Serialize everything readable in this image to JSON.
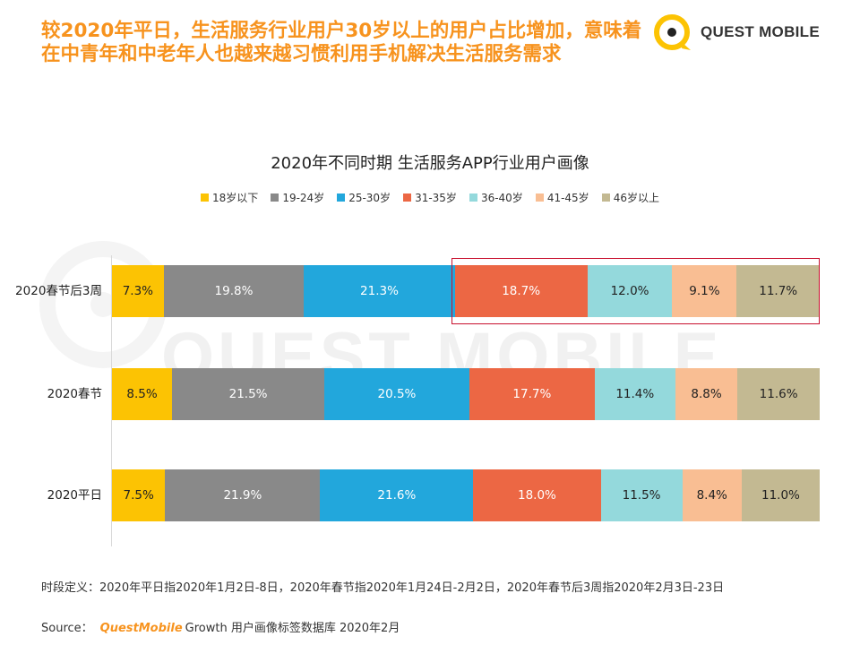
{
  "headline": "较2020年平日，生活服务行业用户30岁以上的用户占比增加，意味着在中青年和中老年人也越来越习惯利用手机解决生活服务需求",
  "brand": {
    "logo_text": "QUEST MOBILE",
    "watermark_text": "QUEST MOBILE"
  },
  "colors": {
    "accent": "#f7931e",
    "highlight_border": "#c8102e",
    "series": [
      "#fcc303",
      "#898989",
      "#22a7dc",
      "#ec6744",
      "#94d9dc",
      "#f9be93",
      "#c3b992"
    ]
  },
  "chart_data": {
    "type": "bar",
    "orientation": "horizontal",
    "stacked": true,
    "normalized": true,
    "title": "2020年不同时期 生活服务APP行业用户画像",
    "categories": [
      "2020春节后3周",
      "2020春节",
      "2020平日"
    ],
    "series": [
      {
        "name": "18岁以下",
        "values": [
          7.3,
          8.5,
          7.5
        ]
      },
      {
        "name": "19-24岁",
        "values": [
          19.8,
          21.5,
          21.9
        ]
      },
      {
        "name": "25-30岁",
        "values": [
          21.3,
          20.5,
          21.6
        ]
      },
      {
        "name": "31-35岁",
        "values": [
          18.7,
          17.7,
          18.0
        ]
      },
      {
        "name": "36-40岁",
        "values": [
          12.0,
          11.4,
          11.5
        ]
      },
      {
        "name": "41-45岁",
        "values": [
          9.1,
          8.8,
          8.4
        ]
      },
      {
        "name": "46岁以上",
        "values": [
          11.7,
          11.6,
          11.0
        ]
      }
    ],
    "labels": [
      [
        "7.3%",
        "19.8%",
        "21.3%",
        "18.7%",
        "12.0%",
        "9.1%",
        "11.7%"
      ],
      [
        "8.5%",
        "21.5%",
        "20.5%",
        "17.7%",
        "11.4%",
        "8.8%",
        "11.6%"
      ],
      [
        "7.5%",
        "21.9%",
        "21.6%",
        "18.0%",
        "11.5%",
        "8.4%",
        "11.0%"
      ]
    ],
    "legend_position": "top",
    "highlight": {
      "category": "2020春节后3周",
      "from_series": "31-35岁",
      "to_series": "46岁以上"
    }
  },
  "footnote": "时段定义：2020年平日指2020年1月2日-8日，2020年春节指2020年1月24日-2月2日，2020年春节后3周指2020年2月3日-23日",
  "source": {
    "prefix": "Source：",
    "brand": "QuestMobile",
    "suffix": "Growth 用户画像标签数据库 2020年2月"
  }
}
